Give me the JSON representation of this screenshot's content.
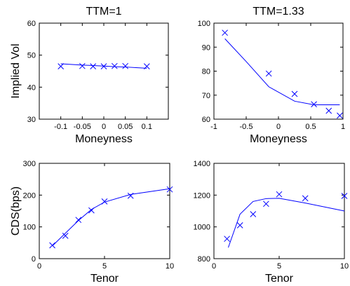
{
  "chart_data": [
    {
      "type": "line",
      "title": "TTM=1",
      "xlabel": "Moneyness",
      "ylabel": "Implied Vol",
      "xlim": [
        -0.15,
        0.15
      ],
      "ylim": [
        30,
        60
      ],
      "xticks": [
        "-0.1",
        "-0.05",
        "0",
        "0.05",
        "0.1"
      ],
      "yticks": [
        "30",
        "40",
        "50",
        "60"
      ],
      "series": [
        {
          "style": "line",
          "x": [
            -0.1,
            -0.05,
            0,
            0.025,
            0.05,
            0.075,
            0.1
          ],
          "y": [
            47.3,
            46.9,
            46.6,
            46.4,
            46.3,
            46.1,
            45.9
          ]
        },
        {
          "style": "markers",
          "x": [
            -0.1,
            -0.05,
            -0.025,
            0,
            0.025,
            0.05,
            0.1
          ],
          "y": [
            46.5,
            46.6,
            46.5,
            46.5,
            46.6,
            46.6,
            46.5
          ]
        }
      ]
    },
    {
      "type": "line",
      "title": "TTM=1.33",
      "xlabel": "Moneyness",
      "ylabel": "",
      "xlim": [
        -1,
        1
      ],
      "ylim": [
        60,
        100
      ],
      "xticks": [
        "-1",
        "-0.5",
        "0",
        "0.5",
        "1"
      ],
      "yticks": [
        "60",
        "70",
        "80",
        "90",
        "100"
      ],
      "series": [
        {
          "style": "line",
          "x": [
            -0.83,
            -0.5,
            -0.15,
            0.25,
            0.55,
            0.95
          ],
          "y": [
            93.5,
            84,
            73.5,
            67.5,
            66,
            66
          ]
        },
        {
          "style": "markers",
          "x": [
            -0.83,
            -0.15,
            0.25,
            0.55,
            0.78,
            0.95
          ],
          "y": [
            96,
            79,
            70.5,
            66.2,
            63.5,
            61.5
          ]
        }
      ]
    },
    {
      "type": "line",
      "title": "",
      "xlabel": "Tenor",
      "ylabel": "CDS(bps)",
      "xlim": [
        0,
        10
      ],
      "ylim": [
        0,
        300
      ],
      "xticks": [
        "0",
        "5",
        "10"
      ],
      "yticks": [
        "0",
        "100",
        "200",
        "300"
      ],
      "series": [
        {
          "style": "line",
          "x": [
            1,
            2,
            3,
            4,
            5,
            7,
            10
          ],
          "y": [
            40,
            80,
            120,
            155,
            178,
            202,
            220
          ]
        },
        {
          "style": "markers",
          "x": [
            1,
            2,
            3,
            4,
            5,
            7,
            10
          ],
          "y": [
            42,
            72,
            122,
            152,
            180,
            198,
            218
          ]
        }
      ]
    },
    {
      "type": "line",
      "title": "",
      "xlabel": "Tenor",
      "ylabel": "",
      "xlim": [
        0,
        10
      ],
      "ylim": [
        800,
        1400
      ],
      "xticks": [
        "0",
        "5",
        "10"
      ],
      "yticks": [
        "800",
        "1000",
        "1200",
        "1400"
      ],
      "series": [
        {
          "style": "line",
          "x": [
            1.1,
            2,
            3,
            4,
            5,
            7,
            10
          ],
          "y": [
            870,
            1080,
            1160,
            1178,
            1180,
            1150,
            1100
          ]
        },
        {
          "style": "markers",
          "x": [
            1,
            2,
            3,
            4,
            5,
            7,
            10
          ],
          "y": [
            925,
            1010,
            1080,
            1145,
            1205,
            1180,
            1195
          ]
        }
      ]
    }
  ]
}
